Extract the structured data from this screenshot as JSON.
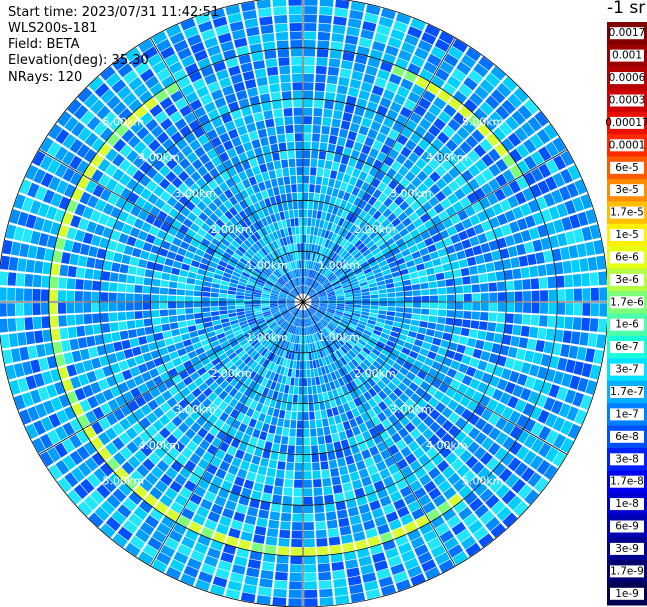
{
  "header": {
    "start_time": "Start time: 2023/07/31 11:42:51",
    "instrument": "WLS200s-181",
    "field": "Field: BETA",
    "elevation": "Elevation(deg): 35.30",
    "nrays": "NRays: 120"
  },
  "colorbar": {
    "unit": "-1 sr",
    "labels": [
      "0.0017",
      "0.001",
      "0.0006",
      "0.0003",
      "0.00017",
      "0.0001",
      "6e-5",
      "3e-5",
      "1.7e-5",
      "1e-5",
      "6e-6",
      "3e-6",
      "1.7e-6",
      "1e-6",
      "6e-7",
      "3e-7",
      "1.7e-7",
      "1e-7",
      "6e-8",
      "3e-8",
      "1.7e-8",
      "1e-8",
      "6e-9",
      "3e-9",
      "1.7e-9",
      "1e-9"
    ],
    "colors": [
      "#800000",
      "#9a0000",
      "#b40000",
      "#ce0000",
      "#e81000",
      "#ff2a00",
      "#ff5a00",
      "#ff8c00",
      "#ffbe00",
      "#fff000",
      "#e6ff14",
      "#b4ff46",
      "#80ff78",
      "#4cffaa",
      "#18ffdc",
      "#00e0ff",
      "#00b0ff",
      "#0080ff",
      "#0050ff",
      "#0020ff",
      "#0000f0",
      "#0000d0",
      "#0000b0",
      "#000090",
      "#000070",
      "#000050"
    ]
  },
  "chart_data": {
    "type": "heatmap",
    "projection": "polar PPI",
    "field": "BETA",
    "n_rays": 120,
    "range_rings_km": [
      1.0,
      2.0,
      3.0,
      4.0,
      5.0
    ],
    "ring_labels": [
      "1.00km",
      "2.00km",
      "3.00km",
      "4.00km",
      "5.00km"
    ],
    "azimuth_lines_deg": [
      0,
      30,
      60,
      90,
      120,
      150,
      180,
      210,
      240,
      270,
      300,
      330
    ],
    "max_range_km": 6.0,
    "background_level": "1e-8",
    "feature": {
      "description_level": "1e-5",
      "range_km": 4.9
    }
  }
}
